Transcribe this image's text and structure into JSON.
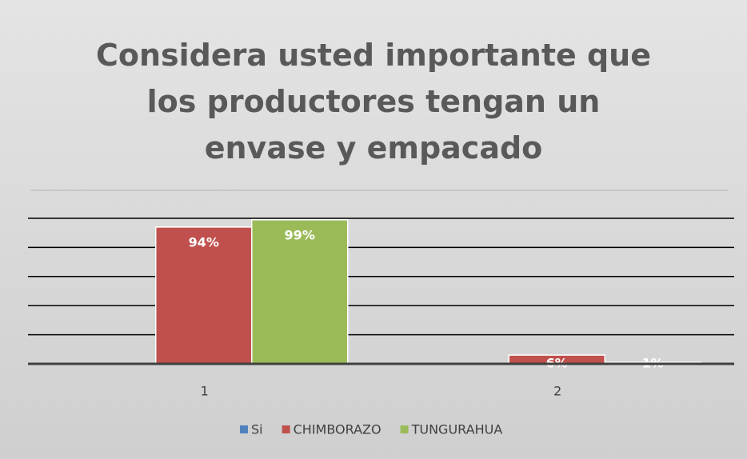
{
  "chart_data": {
    "type": "bar",
    "title": "Considera usted importante que los productores tengan un envase y empacado",
    "categories": [
      "1",
      "2"
    ],
    "series": [
      {
        "name": "Si",
        "color": "#4f81bd",
        "values": [
          null,
          null
        ]
      },
      {
        "name": "CHIMBORAZO",
        "color": "#c0504d",
        "values": [
          94,
          6
        ],
        "value_labels": [
          "94%",
          "6%"
        ]
      },
      {
        "name": "TUNGURAHUA",
        "color": "#9bbb59",
        "values": [
          99,
          1
        ],
        "value_labels": [
          "99%",
          "1%"
        ]
      }
    ],
    "ylim": [
      0,
      100
    ],
    "yticks": [
      0,
      20,
      40,
      60,
      80,
      100
    ],
    "grid": true
  }
}
